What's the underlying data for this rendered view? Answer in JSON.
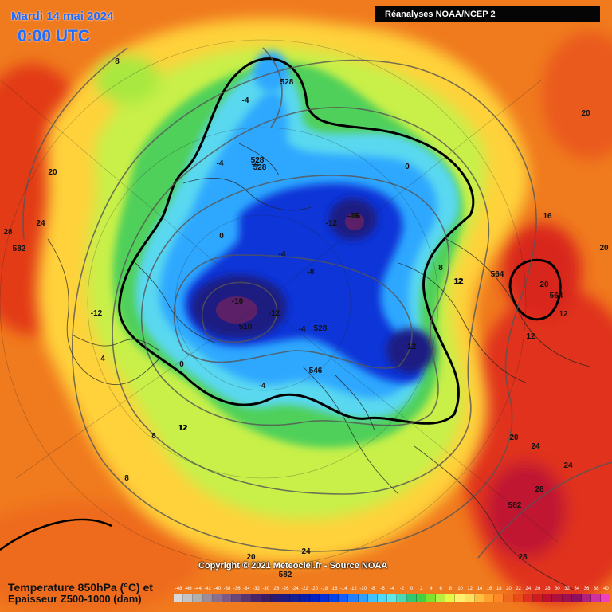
{
  "header": {
    "date_title": "Mardi 14 mai 2024",
    "time_title": "0:00 UTC",
    "source": "Réanalyses NOAA/NCEP 2"
  },
  "footer": {
    "copyright": "Copyright © 2021 Meteociel.fr - Source NOAA",
    "legend_title_temp": "Temperature 850hPa (°C) et",
    "legend_title_thickness": "Epaisseur Z500-1000 (dam)"
  },
  "colorbar": {
    "labels": [
      "-48",
      "-46",
      "-44",
      "-42",
      "-40",
      "-38",
      "-36",
      "-34",
      "-32",
      "-30",
      "-28",
      "-26",
      "-24",
      "-22",
      "-20",
      "-18",
      "-16",
      "-14",
      "-12",
      "-10",
      "-8",
      "-6",
      "-4",
      "-2",
      "0",
      "2",
      "4",
      "6",
      "8",
      "10",
      "12",
      "14",
      "16",
      "18",
      "20",
      "22",
      "24",
      "26",
      "28",
      "30",
      "32",
      "34",
      "36",
      "38",
      "40"
    ],
    "colors": [
      "#d8d8d8",
      "#c4c4c4",
      "#b0b0b0",
      "#9c8c9c",
      "#8c7090",
      "#7c5c84",
      "#6c4878",
      "#5c3470",
      "#4c2468",
      "#3c1c66",
      "#2c1a70",
      "#1e1a80",
      "#141e90",
      "#0a1ea8",
      "#0020c0",
      "#0030d8",
      "#0044f0",
      "#1060ff",
      "#2080ff",
      "#30a0ff",
      "#40c0ff",
      "#50d8f8",
      "#60e8e8",
      "#4cd8b0",
      "#30c870",
      "#40d040",
      "#80e030",
      "#b8f040",
      "#e8f848",
      "#fff070",
      "#ffe060",
      "#ffc040",
      "#ffa030",
      "#ff8828",
      "#f06820",
      "#e84c18",
      "#e03020",
      "#d01c20",
      "#c01030",
      "#b01040",
      "#a01050",
      "#901060",
      "#b02080",
      "#d030a0",
      "#f040c0"
    ]
  },
  "map_labels": {
    "temperature": [
      "8",
      "-4",
      "-4",
      "0",
      "-4",
      "-16",
      "-12",
      "-4",
      "-8",
      "-16",
      "-12",
      "-12",
      "-4",
      "-4",
      "-12",
      "0",
      "8",
      "12",
      "20",
      "20",
      "24",
      "28",
      "20",
      "24",
      "24",
      "28",
      "28",
      "16",
      "20",
      "12",
      "12",
      "-16",
      "12",
      "12",
      "4",
      "0",
      "8",
      "12",
      "8",
      "20",
      "20",
      "24"
    ],
    "thickness": [
      "528",
      "528",
      "528",
      "510",
      "528",
      "546",
      "564",
      "564",
      "582",
      "582",
      "582"
    ]
  }
}
